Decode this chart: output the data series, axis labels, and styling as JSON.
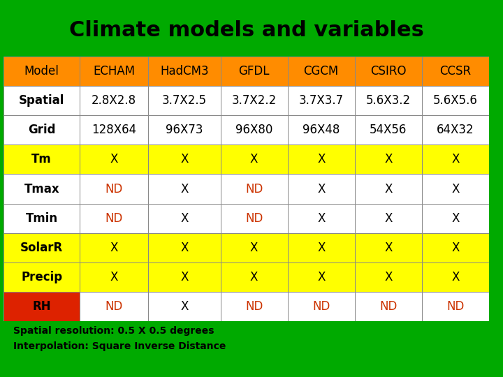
{
  "title": "Climate models and variables",
  "title_bg": "#5b9bd5",
  "title_color": "#000000",
  "bg_outer": "#00aa00",
  "subtitle_text1": "Spatial resolution: 0.5 X 0.5 degrees",
  "subtitle_text2": "Interpolation: Square Inverse Distance",
  "columns": [
    "Model",
    "ECHAM",
    "HadCM3",
    "GFDL",
    "CGCM",
    "CSIRO",
    "CCSR"
  ],
  "rows": [
    [
      "Spatial",
      "2.8X2.8",
      "3.7X2.5",
      "3.7X2.2",
      "3.7X3.7",
      "5.6X3.2",
      "5.6X5.6"
    ],
    [
      "Grid",
      "128X64",
      "96X73",
      "96X80",
      "96X48",
      "54X56",
      "64X32"
    ],
    [
      "Tm",
      "X",
      "X",
      "X",
      "X",
      "X",
      "X"
    ],
    [
      "Tmax",
      "ND",
      "X",
      "ND",
      "X",
      "X",
      "X"
    ],
    [
      "Tmin",
      "ND",
      "X",
      "ND",
      "X",
      "X",
      "X"
    ],
    [
      "SolarR",
      "X",
      "X",
      "X",
      "X",
      "X",
      "X"
    ],
    [
      "Precip",
      "X",
      "X",
      "X",
      "X",
      "X",
      "X"
    ],
    [
      "RH",
      "ND",
      "X",
      "ND",
      "ND",
      "ND",
      "ND"
    ]
  ],
  "header_bg": "#ff8c00",
  "header_text_color": "#000000",
  "yellow_rows": [
    2,
    5,
    6
  ],
  "rh_row": 7,
  "rh_first_cell_bg": "#dd2200",
  "yellow_bg": "#ffff00",
  "white_bg": "#ffffff",
  "nd_color": "#cc3300",
  "normal_text_color": "#000000",
  "border_color": "#888888",
  "title_fontsize": 22,
  "header_fontsize": 12,
  "cell_fontsize": 12
}
